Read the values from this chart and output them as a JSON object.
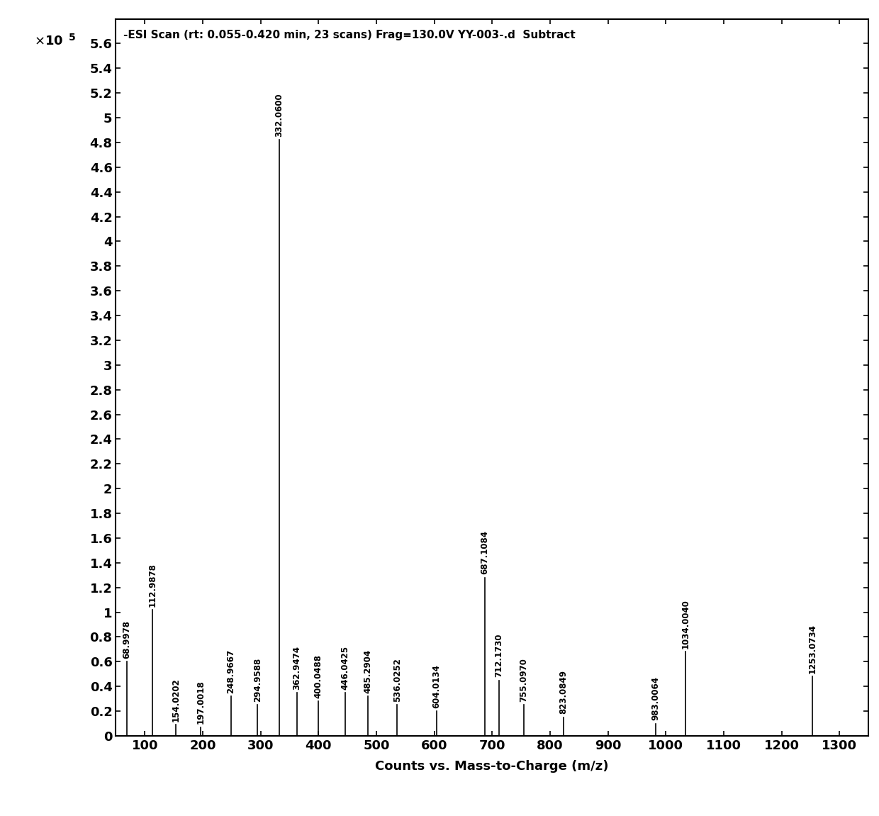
{
  "title": "-ESI Scan (rt: 0.055-0.420 min, 23 scans) Frag=130.0V YY-003-.d  Subtract",
  "xlabel": "Counts vs. Mass-to-Charge (m/z)",
  "ylim": [
    0,
    5.8
  ],
  "xlim": [
    50,
    1350
  ],
  "yticks": [
    0,
    0.2,
    0.4,
    0.6,
    0.8,
    1.0,
    1.2,
    1.4,
    1.6,
    1.8,
    2.0,
    2.2,
    2.4,
    2.6,
    2.8,
    3.0,
    3.2,
    3.4,
    3.6,
    3.8,
    4.0,
    4.2,
    4.4,
    4.6,
    4.8,
    5.0,
    5.2,
    5.4,
    5.6
  ],
  "ytick_labels": [
    "0",
    "0.2",
    "0.4",
    "0.6",
    "0.8",
    "1",
    "1.2",
    "1.4",
    "1.6",
    "1.8",
    "2",
    "2.2",
    "2.4",
    "2.6",
    "2.8",
    "3",
    "3.2",
    "3.4",
    "3.6",
    "3.8",
    "4",
    "4.2",
    "4.4",
    "4.6",
    "4.8",
    "5",
    "5.2",
    "5.4",
    "5.6"
  ],
  "xticks": [
    100,
    200,
    300,
    400,
    500,
    600,
    700,
    800,
    900,
    1000,
    1100,
    1200,
    1300
  ],
  "peaks": [
    {
      "mz": 68.9978,
      "intensity": 0.6,
      "label": "68.9978"
    },
    {
      "mz": 112.9878,
      "intensity": 1.02,
      "label": "112.9878"
    },
    {
      "mz": 154.0202,
      "intensity": 0.09,
      "label": "154.0202"
    },
    {
      "mz": 197.0018,
      "intensity": 0.07,
      "label": "197.0018"
    },
    {
      "mz": 248.9667,
      "intensity": 0.32,
      "label": "248.9667"
    },
    {
      "mz": 294.9588,
      "intensity": 0.25,
      "label": "294.9588"
    },
    {
      "mz": 332.06,
      "intensity": 4.82,
      "label": "332.0600"
    },
    {
      "mz": 362.9474,
      "intensity": 0.35,
      "label": "362.9474"
    },
    {
      "mz": 400.0488,
      "intensity": 0.28,
      "label": "400.0488"
    },
    {
      "mz": 446.0425,
      "intensity": 0.35,
      "label": "446.0425"
    },
    {
      "mz": 485.2904,
      "intensity": 0.32,
      "label": "485.2904"
    },
    {
      "mz": 536.0252,
      "intensity": 0.25,
      "label": "536.0252"
    },
    {
      "mz": 604.0134,
      "intensity": 0.2,
      "label": "604.0134"
    },
    {
      "mz": 687.1084,
      "intensity": 1.28,
      "label": "687.1084"
    },
    {
      "mz": 712.173,
      "intensity": 0.45,
      "label": "712.1730"
    },
    {
      "mz": 755.097,
      "intensity": 0.25,
      "label": "755.0970"
    },
    {
      "mz": 823.0849,
      "intensity": 0.15,
      "label": "823.0849"
    },
    {
      "mz": 983.0064,
      "intensity": 0.1,
      "label": "983.0064"
    },
    {
      "mz": 1034.004,
      "intensity": 0.68,
      "label": "1034.0040"
    },
    {
      "mz": 1253.0734,
      "intensity": 0.48,
      "label": "1253.0734"
    }
  ],
  "background_color": "#ffffff",
  "line_color": "#000000",
  "label_fontsize": 8.5,
  "title_fontsize": 11,
  "axis_tick_fontsize": 13,
  "axis_label_fontsize": 13
}
